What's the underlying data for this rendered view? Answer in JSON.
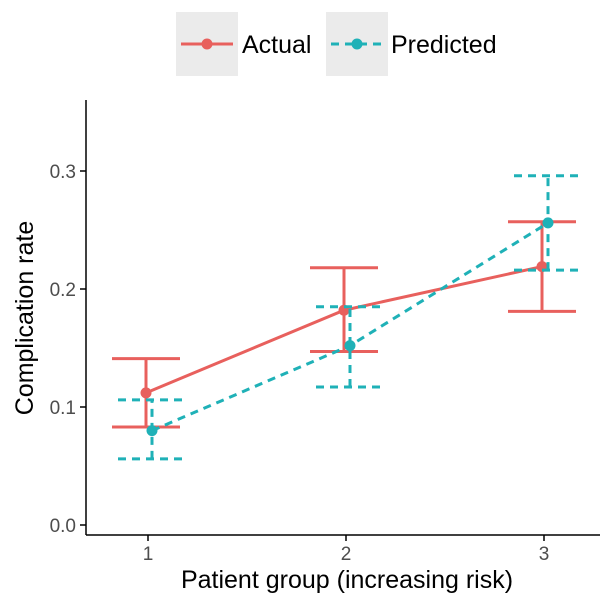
{
  "chart_data": {
    "type": "line",
    "title": "",
    "xlabel": "Patient group (increasing risk)",
    "ylabel": "Complication rate",
    "x": [
      1,
      2,
      3
    ],
    "x_ticks": [
      "1",
      "2",
      "3"
    ],
    "y_ticks": [
      "0.0",
      "0.1",
      "0.2",
      "0.3"
    ],
    "ylim": [
      0,
      0.35
    ],
    "xlim": [
      0.7,
      3.3
    ],
    "grid": false,
    "legend_position": "top",
    "series": [
      {
        "name": "Actual",
        "color": "#e8605d",
        "line_style": "solid",
        "values": [
          0.112,
          0.182,
          0.219
        ],
        "error_low": [
          0.083,
          0.147,
          0.181
        ],
        "error_high": [
          0.141,
          0.218,
          0.257
        ]
      },
      {
        "name": "Predicted",
        "color": "#1fb1b7",
        "line_style": "dashed",
        "values": [
          0.08,
          0.152,
          0.256
        ],
        "error_low": [
          0.056,
          0.117,
          0.216
        ],
        "error_high": [
          0.106,
          0.185,
          0.296
        ]
      }
    ]
  }
}
